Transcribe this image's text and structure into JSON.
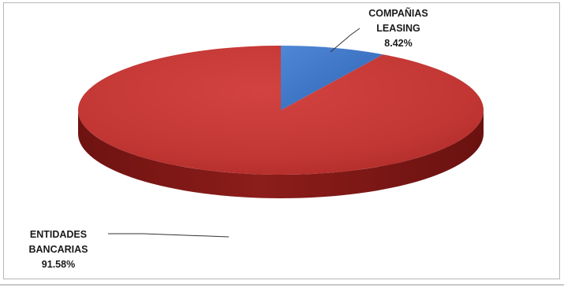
{
  "chart_data": {
    "type": "pie",
    "style": "3d",
    "title": "",
    "slices": [
      {
        "label_lines": [
          "COMPAÑIAS",
          "LEASING"
        ],
        "value_label": "8.42%",
        "value": 8.42,
        "color": "#3a72c4"
      },
      {
        "label_lines": [
          "ENTIDADES",
          "BANCARIAS"
        ],
        "value_label": "91.58%",
        "value": 91.58,
        "color": "#c43a37"
      }
    ],
    "legend": "none"
  }
}
